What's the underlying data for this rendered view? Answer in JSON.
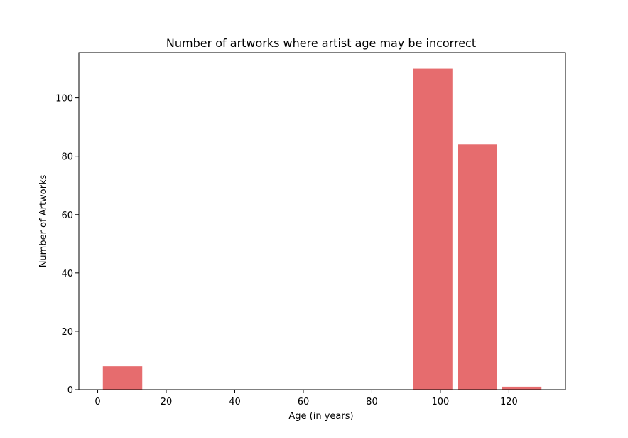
{
  "chart_data": {
    "type": "bar",
    "title": "Number of artworks where artist age may be incorrect",
    "xlabel": "Age (in years)",
    "ylabel": "Number of Artworks",
    "xlim": [
      -5.5,
      136.5
    ],
    "ylim": [
      0,
      115.5
    ],
    "xticks": [
      0,
      20,
      40,
      60,
      80,
      100,
      120
    ],
    "yticks": [
      0,
      20,
      40,
      60,
      80,
      100
    ],
    "bar_color": "#e66c6e",
    "bars": [
      {
        "x_start": 1.5,
        "x_end": 13,
        "value": 8
      },
      {
        "x_start": 92,
        "x_end": 103.5,
        "value": 110
      },
      {
        "x_start": 105,
        "x_end": 116.5,
        "value": 84
      },
      {
        "x_start": 118,
        "x_end": 129.5,
        "value": 1
      }
    ],
    "grid": false,
    "legend": "none"
  }
}
